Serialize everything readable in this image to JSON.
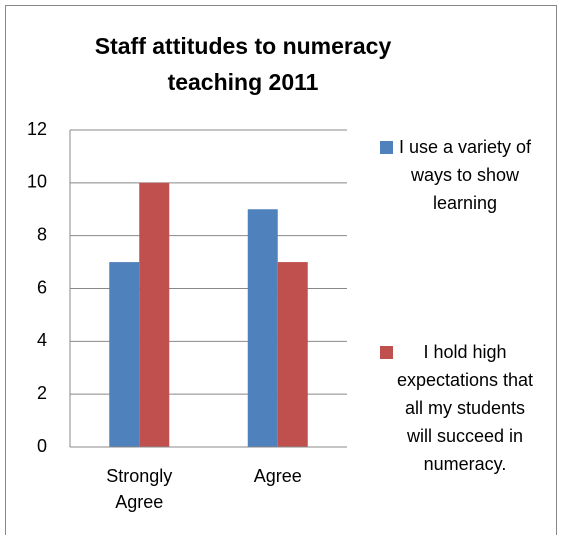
{
  "chart_data": {
    "type": "bar",
    "title": "Staff attitudes to numeracy teaching 2011",
    "categories": [
      "Strongly Agree",
      "Agree"
    ],
    "series": [
      {
        "name": "I use a variety of ways to show learning",
        "color": "#4f81bd",
        "values": [
          7,
          9
        ]
      },
      {
        "name": "I hold high expectations that all my students will succeed in numeracy.",
        "color": "#c0504d",
        "values": [
          10,
          7
        ]
      }
    ],
    "ylim": [
      0,
      12
    ],
    "yticks": [
      0,
      2,
      4,
      6,
      8,
      10,
      12
    ],
    "grid": true,
    "legend": "right"
  }
}
